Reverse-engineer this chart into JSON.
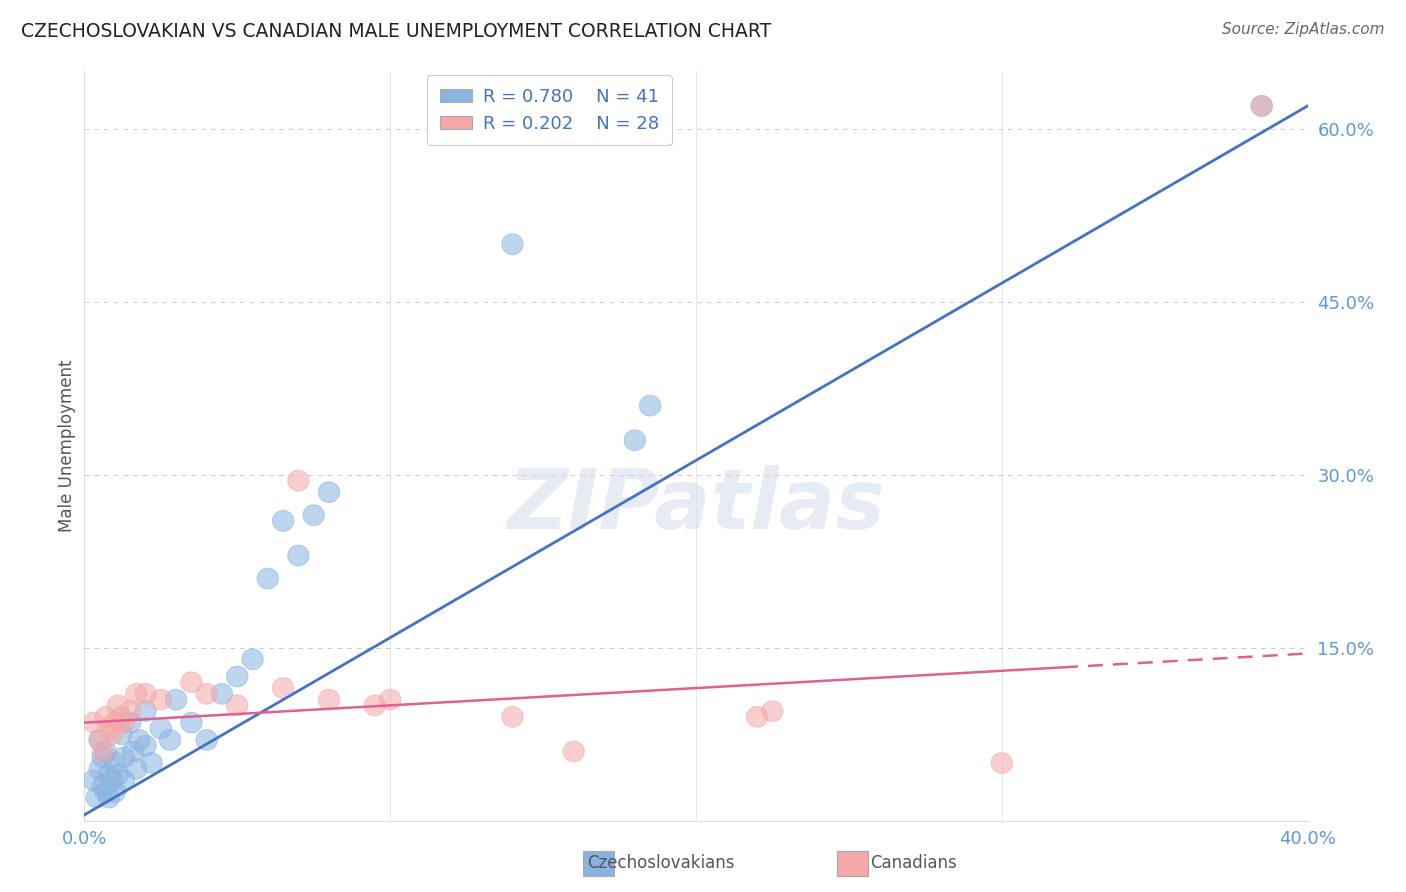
{
  "title": "CZECHOSLOVAKIAN VS CANADIAN MALE UNEMPLOYMENT CORRELATION CHART",
  "source": "Source: ZipAtlas.com",
  "watermark": "ZIPatlas",
  "ylabel": "Male Unemployment",
  "xlim": [
    0.0,
    40.0
  ],
  "ylim": [
    0.0,
    65.0
  ],
  "ytick_vals": [
    15.0,
    30.0,
    45.0,
    60.0
  ],
  "blue_R": "R = 0.780",
  "blue_N": "N = 41",
  "pink_R": "R = 0.202",
  "pink_N": "N = 28",
  "blue_color": "#8ab4e0",
  "pink_color": "#f4a8a8",
  "blue_line_color": "#4472c4",
  "pink_line_color": "#e06090",
  "axis_color": "#5b9bd5",
  "legend_text_color": "#4472c4",
  "blue_points": [
    [
      0.3,
      3.5
    ],
    [
      0.4,
      2.0
    ],
    [
      0.5,
      4.5
    ],
    [
      0.5,
      7.0
    ],
    [
      0.6,
      3.0
    ],
    [
      0.6,
      5.5
    ],
    [
      0.7,
      2.5
    ],
    [
      0.7,
      6.0
    ],
    [
      0.8,
      4.0
    ],
    [
      0.8,
      2.0
    ],
    [
      0.9,
      3.5
    ],
    [
      1.0,
      5.0
    ],
    [
      1.0,
      2.5
    ],
    [
      1.1,
      4.0
    ],
    [
      1.2,
      7.5
    ],
    [
      1.3,
      3.5
    ],
    [
      1.3,
      5.5
    ],
    [
      1.5,
      8.5
    ],
    [
      1.6,
      6.0
    ],
    [
      1.7,
      4.5
    ],
    [
      1.8,
      7.0
    ],
    [
      2.0,
      6.5
    ],
    [
      2.0,
      9.5
    ],
    [
      2.2,
      5.0
    ],
    [
      2.5,
      8.0
    ],
    [
      2.8,
      7.0
    ],
    [
      3.0,
      10.5
    ],
    [
      3.5,
      8.5
    ],
    [
      4.0,
      7.0
    ],
    [
      4.5,
      11.0
    ],
    [
      5.0,
      12.5
    ],
    [
      5.5,
      14.0
    ],
    [
      6.0,
      21.0
    ],
    [
      6.5,
      26.0
    ],
    [
      7.0,
      23.0
    ],
    [
      7.5,
      26.5
    ],
    [
      8.0,
      28.5
    ],
    [
      14.0,
      50.0
    ],
    [
      18.0,
      33.0
    ],
    [
      18.5,
      36.0
    ],
    [
      38.5,
      62.0
    ]
  ],
  "pink_points": [
    [
      0.3,
      8.5
    ],
    [
      0.5,
      7.0
    ],
    [
      0.6,
      6.0
    ],
    [
      0.7,
      9.0
    ],
    [
      0.8,
      8.0
    ],
    [
      0.9,
      7.5
    ],
    [
      1.0,
      8.5
    ],
    [
      1.1,
      10.0
    ],
    [
      1.2,
      9.0
    ],
    [
      1.3,
      8.5
    ],
    [
      1.5,
      9.5
    ],
    [
      1.7,
      11.0
    ],
    [
      2.0,
      11.0
    ],
    [
      2.5,
      10.5
    ],
    [
      3.5,
      12.0
    ],
    [
      4.0,
      11.0
    ],
    [
      5.0,
      10.0
    ],
    [
      6.5,
      11.5
    ],
    [
      7.0,
      29.5
    ],
    [
      8.0,
      10.5
    ],
    [
      9.5,
      10.0
    ],
    [
      10.0,
      10.5
    ],
    [
      14.0,
      9.0
    ],
    [
      16.0,
      6.0
    ],
    [
      22.0,
      9.0
    ],
    [
      22.5,
      9.5
    ],
    [
      30.0,
      5.0
    ],
    [
      38.5,
      62.0
    ]
  ],
  "blue_line": {
    "x0": 0.0,
    "y0": 0.5,
    "x1": 40.0,
    "y1": 62.0
  },
  "pink_line": {
    "x0": 0.0,
    "y0": 8.5,
    "x1": 40.0,
    "y1": 14.5
  },
  "pink_line_dashed_start": 32.0,
  "grid_color": "#cccccc",
  "background_color": "#ffffff",
  "title_color": "#222222",
  "source_color": "#666666"
}
